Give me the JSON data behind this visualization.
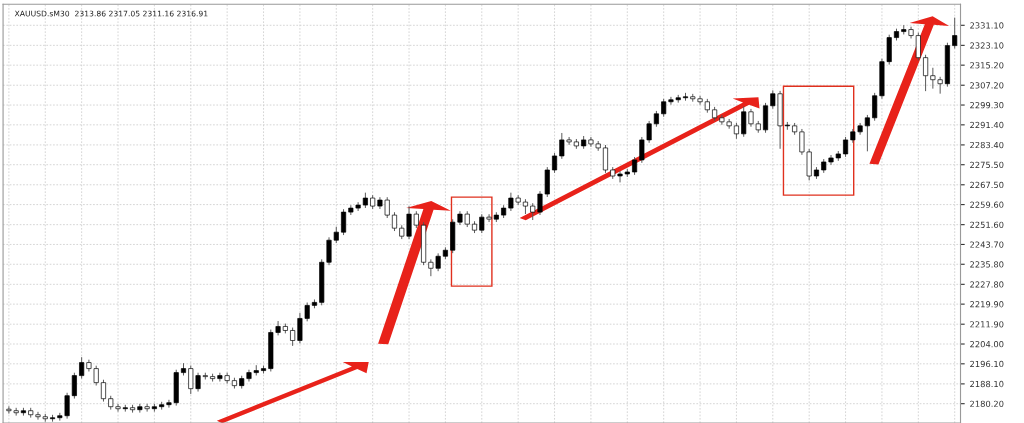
{
  "chart_data": {
    "type": "candlestick",
    "title": "XAUUSD.sM30  2313.86 2317.05 2311.16 2316.91",
    "categories": [
      null,
      null,
      null,
      null,
      null,
      null,
      null,
      null,
      null,
      null,
      null,
      null,
      null,
      null,
      null,
      null,
      null,
      null,
      null,
      null,
      null,
      null,
      null,
      null,
      null,
      null,
      null,
      null,
      null,
      null,
      null,
      null,
      null,
      null,
      null,
      null,
      null,
      null,
      null,
      null,
      null,
      null,
      null,
      null,
      null,
      null,
      null,
      null,
      null,
      null,
      null,
      null,
      null,
      null,
      null,
      null,
      null,
      null,
      null,
      null,
      null,
      null,
      null,
      null,
      null,
      null,
      null,
      null,
      null,
      null,
      null,
      null,
      null,
      null,
      null,
      null,
      null,
      null,
      null,
      null,
      null,
      null,
      null,
      null,
      null,
      null,
      null,
      null,
      null,
      null,
      null,
      null,
      null,
      null,
      null,
      null,
      null,
      null,
      null,
      null,
      null,
      null,
      null,
      null,
      null,
      null,
      null,
      null,
      null,
      null,
      null,
      null,
      null,
      null,
      null,
      null,
      null,
      null,
      null,
      null,
      null,
      null,
      null,
      null,
      null,
      null,
      null,
      null,
      null,
      null,
      null
    ],
    "ohlc": [
      [
        2178.0,
        2179.0,
        2176.4,
        2177.4
      ],
      [
        2177.4,
        2178.4,
        2175.6,
        2176.6
      ],
      [
        2176.6,
        2178.4,
        2175.6,
        2177.4
      ],
      [
        2177.4,
        2178.4,
        2174.8,
        2175.8
      ],
      [
        2175.8,
        2176.8,
        2174.0,
        2175.0
      ],
      [
        2175.0,
        2176.0,
        2173.2,
        2174.2
      ],
      [
        2174.2,
        2175.6,
        2173.2,
        2174.6
      ],
      [
        2174.6,
        2176.4,
        2173.6,
        2175.4
      ],
      [
        2175.4,
        2184.4,
        2174.4,
        2183.4
      ],
      [
        2183.4,
        2192.4,
        2182.4,
        2191.4
      ],
      [
        2191.4,
        2198.6,
        2190.4,
        2196.6
      ],
      [
        2196.6,
        2197.6,
        2193.2,
        2194.2
      ],
      [
        2194.2,
        2195.2,
        2187.6,
        2188.6
      ],
      [
        2188.6,
        2189.6,
        2181.2,
        2182.2
      ],
      [
        2182.2,
        2183.2,
        2178.0,
        2179.0
      ],
      [
        2179.0,
        2180.0,
        2177.2,
        2178.2
      ],
      [
        2178.2,
        2179.6,
        2177.2,
        2178.6
      ],
      [
        2178.6,
        2179.6,
        2176.8,
        2177.8
      ],
      [
        2177.8,
        2180.0,
        2176.8,
        2179.0
      ],
      [
        2179.0,
        2180.0,
        2177.2,
        2178.2
      ],
      [
        2178.2,
        2180.0,
        2177.2,
        2179.0
      ],
      [
        2179.0,
        2180.8,
        2178.0,
        2179.8
      ],
      [
        2179.8,
        2181.6,
        2178.8,
        2180.6
      ],
      [
        2180.6,
        2193.6,
        2179.6,
        2192.6
      ],
      [
        2192.6,
        2196.2,
        2191.6,
        2194.2
      ],
      [
        2194.2,
        2195.2,
        2184.2,
        2186.2
      ],
      [
        2186.2,
        2192.4,
        2185.2,
        2191.4
      ],
      [
        2191.4,
        2192.4,
        2190.0,
        2191.0
      ],
      [
        2191.0,
        2192.0,
        2189.2,
        2190.2
      ],
      [
        2190.2,
        2192.4,
        2189.2,
        2191.4
      ],
      [
        2191.4,
        2192.4,
        2188.4,
        2189.4
      ],
      [
        2189.4,
        2190.4,
        2186.4,
        2187.4
      ],
      [
        2187.4,
        2191.2,
        2186.4,
        2190.2
      ],
      [
        2190.2,
        2193.6,
        2189.2,
        2192.6
      ],
      [
        2192.6,
        2195.4,
        2191.6,
        2193.4
      ],
      [
        2193.4,
        2195.2,
        2192.4,
        2194.2
      ],
      [
        2194.2,
        2209.6,
        2193.2,
        2208.6
      ],
      [
        2208.6,
        2213.0,
        2207.6,
        2211.0
      ],
      [
        2211.0,
        2212.0,
        2208.4,
        2209.4
      ],
      [
        2209.4,
        2210.4,
        2203.4,
        2205.4
      ],
      [
        2205.4,
        2216.2,
        2204.4,
        2214.2
      ],
      [
        2214.2,
        2220.4,
        2213.2,
        2219.4
      ],
      [
        2219.4,
        2221.6,
        2218.4,
        2220.6
      ],
      [
        2220.6,
        2237.6,
        2219.6,
        2236.6
      ],
      [
        2236.6,
        2246.4,
        2235.6,
        2245.4
      ],
      [
        2245.4,
        2250.6,
        2244.4,
        2248.6
      ],
      [
        2248.6,
        2257.6,
        2247.6,
        2256.6
      ],
      [
        2256.6,
        2259.2,
        2255.6,
        2258.2
      ],
      [
        2258.2,
        2260.4,
        2257.2,
        2259.4
      ],
      [
        2259.4,
        2264.2,
        2258.4,
        2262.2
      ],
      [
        2262.2,
        2263.2,
        2258.0,
        2259.0
      ],
      [
        2259.0,
        2262.4,
        2258.0,
        2261.4
      ],
      [
        2261.4,
        2262.4,
        2254.4,
        2255.4
      ],
      [
        2255.4,
        2256.4,
        2249.2,
        2250.2
      ],
      [
        2250.2,
        2251.2,
        2246.0,
        2247.0
      ],
      [
        2247.0,
        2258.8,
        2246.0,
        2255.8
      ],
      [
        2255.8,
        2256.8,
        2250.4,
        2251.4
      ],
      [
        2251.4,
        2252.4,
        2235.6,
        2236.6
      ],
      [
        2236.6,
        2237.6,
        2231.2,
        2234.2
      ],
      [
        2234.2,
        2240.0,
        2233.2,
        2239.0
      ],
      [
        2239.0,
        2242.4,
        2238.0,
        2241.4
      ],
      [
        2241.4,
        2253.6,
        2240.4,
        2252.6
      ],
      [
        2252.6,
        2256.8,
        2251.6,
        2255.8
      ],
      [
        2255.8,
        2256.8,
        2250.8,
        2251.8
      ],
      [
        2251.8,
        2252.8,
        2248.4,
        2249.4
      ],
      [
        2249.4,
        2255.6,
        2248.4,
        2254.6
      ],
      [
        2254.6,
        2255.6,
        2252.8,
        2253.8
      ],
      [
        2253.8,
        2256.4,
        2252.8,
        2255.4
      ],
      [
        2255.4,
        2259.2,
        2254.4,
        2258.2
      ],
      [
        2258.2,
        2264.2,
        2257.2,
        2262.2
      ],
      [
        2262.2,
        2263.2,
        2259.6,
        2260.6
      ],
      [
        2260.6,
        2261.6,
        2256.0,
        2259.0
      ],
      [
        2259.0,
        2260.0,
        2253.6,
        2256.6
      ],
      [
        2256.6,
        2264.8,
        2255.6,
        2263.8
      ],
      [
        2263.8,
        2274.4,
        2262.8,
        2273.4
      ],
      [
        2273.4,
        2280.0,
        2272.4,
        2279.0
      ],
      [
        2279.0,
        2288.0,
        2278.0,
        2285.4
      ],
      [
        2285.4,
        2286.4,
        2283.6,
        2284.6
      ],
      [
        2284.6,
        2285.6,
        2282.0,
        2283.0
      ],
      [
        2283.0,
        2286.8,
        2282.0,
        2285.4
      ],
      [
        2285.4,
        2286.4,
        2282.8,
        2283.8
      ],
      [
        2283.8,
        2284.8,
        2281.2,
        2282.2
      ],
      [
        2282.2,
        2283.2,
        2272.4,
        2273.4
      ],
      [
        2273.4,
        2274.4,
        2270.0,
        2271.0
      ],
      [
        2271.0,
        2272.8,
        2268.6,
        2271.8
      ],
      [
        2271.8,
        2273.6,
        2270.8,
        2272.6
      ],
      [
        2272.6,
        2278.4,
        2271.6,
        2277.4
      ],
      [
        2277.4,
        2286.4,
        2276.4,
        2285.4
      ],
      [
        2285.4,
        2292.8,
        2284.4,
        2291.8
      ],
      [
        2291.8,
        2296.8,
        2290.8,
        2295.8
      ],
      [
        2295.8,
        2301.6,
        2294.8,
        2300.6
      ],
      [
        2300.6,
        2302.4,
        2299.6,
        2301.4
      ],
      [
        2301.4,
        2303.2,
        2300.4,
        2302.2
      ],
      [
        2302.2,
        2304.0,
        2301.2,
        2302.6
      ],
      [
        2302.6,
        2303.6,
        2300.8,
        2301.8
      ],
      [
        2301.8,
        2302.8,
        2299.6,
        2300.6
      ],
      [
        2300.6,
        2301.6,
        2296.4,
        2297.4
      ],
      [
        2297.4,
        2298.4,
        2293.2,
        2294.2
      ],
      [
        2294.2,
        2295.2,
        2291.6,
        2292.6
      ],
      [
        2292.6,
        2293.6,
        2290.0,
        2291.0
      ],
      [
        2291.0,
        2292.0,
        2286.0,
        2287.8
      ],
      [
        2287.8,
        2298.6,
        2286.8,
        2296.6
      ],
      [
        2296.6,
        2297.6,
        2290.8,
        2291.8
      ],
      [
        2291.8,
        2292.8,
        2288.4,
        2289.4
      ],
      [
        2289.4,
        2300.0,
        2288.4,
        2299.0
      ],
      [
        2299.0,
        2305.0,
        2298.0,
        2303.8
      ],
      [
        2303.8,
        2304.8,
        2282.0,
        2291.0
      ],
      [
        2291.0,
        2292.4,
        2289.6,
        2291.0
      ],
      [
        2291.0,
        2292.0,
        2287.6,
        2288.6
      ],
      [
        2288.6,
        2289.6,
        2279.6,
        2280.6
      ],
      [
        2280.6,
        2281.6,
        2269.4,
        2271.0
      ],
      [
        2271.0,
        2274.4,
        2270.0,
        2273.4
      ],
      [
        2273.4,
        2277.6,
        2272.4,
        2276.6
      ],
      [
        2276.6,
        2279.2,
        2275.6,
        2278.2
      ],
      [
        2278.2,
        2280.8,
        2277.2,
        2279.8
      ],
      [
        2279.8,
        2286.4,
        2278.8,
        2285.4
      ],
      [
        2285.4,
        2289.6,
        2284.4,
        2288.6
      ],
      [
        2288.6,
        2292.0,
        2287.6,
        2291.0
      ],
      [
        2291.0,
        2295.2,
        2281.0,
        2294.2
      ],
      [
        2294.2,
        2304.0,
        2293.2,
        2303.0
      ],
      [
        2303.0,
        2317.6,
        2302.0,
        2316.6
      ],
      [
        2316.6,
        2327.2,
        2315.6,
        2326.2
      ],
      [
        2326.2,
        2329.6,
        2325.2,
        2328.6
      ],
      [
        2328.6,
        2331.0,
        2327.6,
        2329.4
      ],
      [
        2329.4,
        2330.4,
        2326.0,
        2327.0
      ],
      [
        2327.0,
        2328.0,
        2317.2,
        2318.2
      ],
      [
        2318.2,
        2319.2,
        2305.0,
        2311.0
      ],
      [
        2311.0,
        2314.0,
        2306.0,
        2309.4
      ],
      [
        2309.4,
        2310.4,
        2304.0,
        2307.8
      ],
      [
        2307.8,
        2324.0,
        2306.8,
        2323.0
      ],
      [
        2323.0,
        2334.0,
        2322.0,
        2327.0
      ]
    ],
    "ylim": [
      2172.5,
      2339.5
    ],
    "yticks": [
      {
        "value": 2180.2,
        "label": "2180.20"
      },
      {
        "value": 2188.1,
        "label": "2188.10"
      },
      {
        "value": 2196.1,
        "label": "2196.10"
      },
      {
        "value": 2204.0,
        "label": "2204.00"
      },
      {
        "value": 2211.9,
        "label": "2211.90"
      },
      {
        "value": 2219.9,
        "label": "2219.90"
      },
      {
        "value": 2227.8,
        "label": "2227.80"
      },
      {
        "value": 2235.8,
        "label": "2235.80"
      },
      {
        "value": 2243.7,
        "label": "2243.70"
      },
      {
        "value": 2251.6,
        "label": "2251.60"
      },
      {
        "value": 2259.6,
        "label": "2259.60"
      },
      {
        "value": 2267.5,
        "label": "2267.50"
      },
      {
        "value": 2275.5,
        "label": "2275.50"
      },
      {
        "value": 2283.4,
        "label": "2283.40"
      },
      {
        "value": 2291.4,
        "label": "2291.40"
      },
      {
        "value": 2299.3,
        "label": "2299.30"
      },
      {
        "value": 2307.2,
        "label": "2307.20"
      },
      {
        "value": 2315.2,
        "label": "2315.20"
      },
      {
        "value": 2323.1,
        "label": "2323.10"
      },
      {
        "value": 2331.1,
        "label": "2331.10"
      }
    ],
    "grid": true,
    "tick_labels": "y"
  }
}
